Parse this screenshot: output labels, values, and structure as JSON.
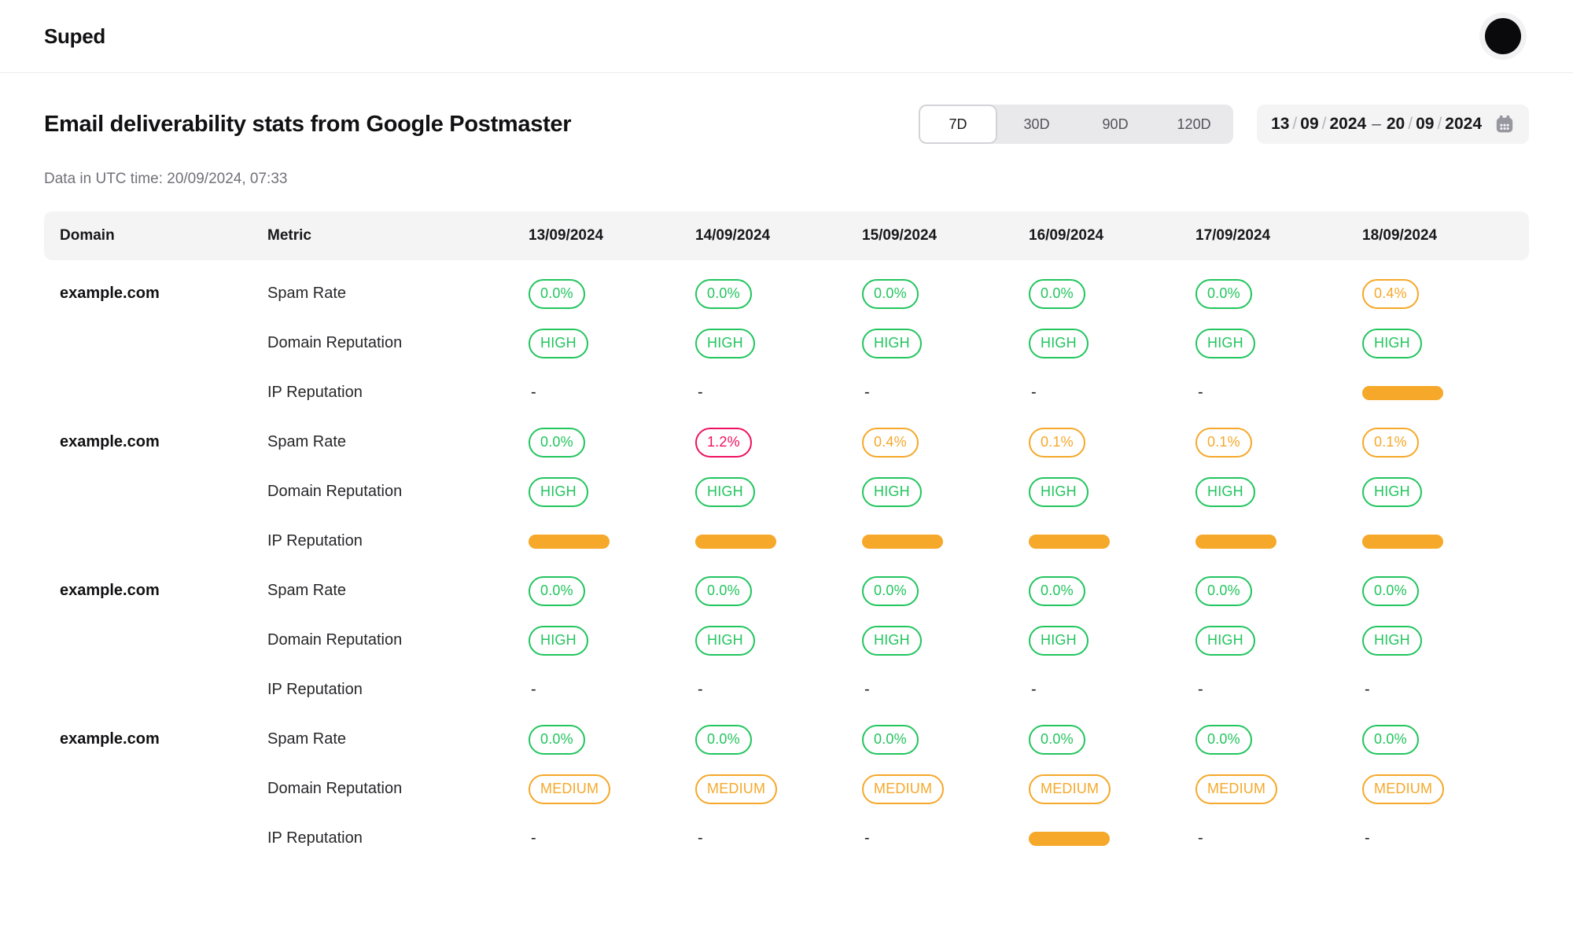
{
  "brand": "Suped",
  "page": {
    "title": "Email deliverability stats from Google Postmaster",
    "subtitle": "Data in UTC time: 20/09/2024, 07:33"
  },
  "range_tabs": {
    "options": [
      "7D",
      "30D",
      "90D",
      "120D"
    ],
    "selected": "7D"
  },
  "date_picker": {
    "start": [
      "13",
      "09",
      "2024"
    ],
    "end": [
      "20",
      "09",
      "2024"
    ],
    "slash": "/",
    "separator": "–",
    "icon": "calendar-icon"
  },
  "colors": {
    "green": "#22c55e",
    "orange": "#f5a829",
    "red": "#ee115f"
  },
  "table": {
    "columns": [
      "Domain",
      "Metric",
      "13/09/2024",
      "14/09/2024",
      "15/09/2024",
      "16/09/2024",
      "17/09/2024",
      "18/09/2024"
    ],
    "groups": [
      {
        "domain": "example.com",
        "rows": [
          {
            "metric": "Spam Rate",
            "cells": [
              {
                "type": "pill",
                "color": "green",
                "value": "0.0%"
              },
              {
                "type": "pill",
                "color": "green",
                "value": "0.0%"
              },
              {
                "type": "pill",
                "color": "green",
                "value": "0.0%"
              },
              {
                "type": "pill",
                "color": "green",
                "value": "0.0%"
              },
              {
                "type": "pill",
                "color": "green",
                "value": "0.0%"
              },
              {
                "type": "pill",
                "color": "orange",
                "value": "0.4%"
              }
            ]
          },
          {
            "metric": "Domain Reputation",
            "cells": [
              {
                "type": "pill",
                "color": "green",
                "value": "HIGH"
              },
              {
                "type": "pill",
                "color": "green",
                "value": "HIGH"
              },
              {
                "type": "pill",
                "color": "green",
                "value": "HIGH"
              },
              {
                "type": "pill",
                "color": "green",
                "value": "HIGH"
              },
              {
                "type": "pill",
                "color": "green",
                "value": "HIGH"
              },
              {
                "type": "pill",
                "color": "green",
                "value": "HIGH"
              }
            ]
          },
          {
            "metric": "IP Reputation",
            "cells": [
              {
                "type": "dash",
                "value": "-"
              },
              {
                "type": "dash",
                "value": "-"
              },
              {
                "type": "dash",
                "value": "-"
              },
              {
                "type": "dash",
                "value": "-"
              },
              {
                "type": "dash",
                "value": "-"
              },
              {
                "type": "bar",
                "color": "orange"
              }
            ]
          }
        ]
      },
      {
        "domain": "example.com",
        "rows": [
          {
            "metric": "Spam Rate",
            "cells": [
              {
                "type": "pill",
                "color": "green",
                "value": "0.0%"
              },
              {
                "type": "pill",
                "color": "red",
                "value": "1.2%"
              },
              {
                "type": "pill",
                "color": "orange",
                "value": "0.4%"
              },
              {
                "type": "pill",
                "color": "orange",
                "value": "0.1%"
              },
              {
                "type": "pill",
                "color": "orange",
                "value": "0.1%"
              },
              {
                "type": "pill",
                "color": "orange",
                "value": "0.1%"
              }
            ]
          },
          {
            "metric": "Domain Reputation",
            "cells": [
              {
                "type": "pill",
                "color": "green",
                "value": "HIGH"
              },
              {
                "type": "pill",
                "color": "green",
                "value": "HIGH"
              },
              {
                "type": "pill",
                "color": "green",
                "value": "HIGH"
              },
              {
                "type": "pill",
                "color": "green",
                "value": "HIGH"
              },
              {
                "type": "pill",
                "color": "green",
                "value": "HIGH"
              },
              {
                "type": "pill",
                "color": "green",
                "value": "HIGH"
              }
            ]
          },
          {
            "metric": "IP Reputation",
            "cells": [
              {
                "type": "bar",
                "color": "orange"
              },
              {
                "type": "bar",
                "color": "orange"
              },
              {
                "type": "bar",
                "color": "orange"
              },
              {
                "type": "bar",
                "color": "orange"
              },
              {
                "type": "bar",
                "color": "orange"
              },
              {
                "type": "bar",
                "color": "orange"
              }
            ]
          }
        ]
      },
      {
        "domain": "example.com",
        "rows": [
          {
            "metric": "Spam Rate",
            "cells": [
              {
                "type": "pill",
                "color": "green",
                "value": "0.0%"
              },
              {
                "type": "pill",
                "color": "green",
                "value": "0.0%"
              },
              {
                "type": "pill",
                "color": "green",
                "value": "0.0%"
              },
              {
                "type": "pill",
                "color": "green",
                "value": "0.0%"
              },
              {
                "type": "pill",
                "color": "green",
                "value": "0.0%"
              },
              {
                "type": "pill",
                "color": "green",
                "value": "0.0%"
              }
            ]
          },
          {
            "metric": "Domain Reputation",
            "cells": [
              {
                "type": "pill",
                "color": "green",
                "value": "HIGH"
              },
              {
                "type": "pill",
                "color": "green",
                "value": "HIGH"
              },
              {
                "type": "pill",
                "color": "green",
                "value": "HIGH"
              },
              {
                "type": "pill",
                "color": "green",
                "value": "HIGH"
              },
              {
                "type": "pill",
                "color": "green",
                "value": "HIGH"
              },
              {
                "type": "pill",
                "color": "green",
                "value": "HIGH"
              }
            ]
          },
          {
            "metric": "IP Reputation",
            "cells": [
              {
                "type": "dash",
                "value": "-"
              },
              {
                "type": "dash",
                "value": "-"
              },
              {
                "type": "dash",
                "value": "-"
              },
              {
                "type": "dash",
                "value": "-"
              },
              {
                "type": "dash",
                "value": "-"
              },
              {
                "type": "dash",
                "value": "-"
              }
            ]
          }
        ]
      },
      {
        "domain": "example.com",
        "rows": [
          {
            "metric": "Spam Rate",
            "cells": [
              {
                "type": "pill",
                "color": "green",
                "value": "0.0%"
              },
              {
                "type": "pill",
                "color": "green",
                "value": "0.0%"
              },
              {
                "type": "pill",
                "color": "green",
                "value": "0.0%"
              },
              {
                "type": "pill",
                "color": "green",
                "value": "0.0%"
              },
              {
                "type": "pill",
                "color": "green",
                "value": "0.0%"
              },
              {
                "type": "pill",
                "color": "green",
                "value": "0.0%"
              }
            ]
          },
          {
            "metric": "Domain Reputation",
            "cells": [
              {
                "type": "pill",
                "color": "orange",
                "value": "MEDIUM"
              },
              {
                "type": "pill",
                "color": "orange",
                "value": "MEDIUM"
              },
              {
                "type": "pill",
                "color": "orange",
                "value": "MEDIUM"
              },
              {
                "type": "pill",
                "color": "orange",
                "value": "MEDIUM"
              },
              {
                "type": "pill",
                "color": "orange",
                "value": "MEDIUM"
              },
              {
                "type": "pill",
                "color": "orange",
                "value": "MEDIUM"
              }
            ]
          },
          {
            "metric": "IP Reputation",
            "cells": [
              {
                "type": "dash",
                "value": "-"
              },
              {
                "type": "dash",
                "value": "-"
              },
              {
                "type": "dash",
                "value": "-"
              },
              {
                "type": "bar",
                "color": "orange"
              },
              {
                "type": "dash",
                "value": "-"
              },
              {
                "type": "dash",
                "value": "-"
              }
            ]
          }
        ]
      }
    ]
  }
}
